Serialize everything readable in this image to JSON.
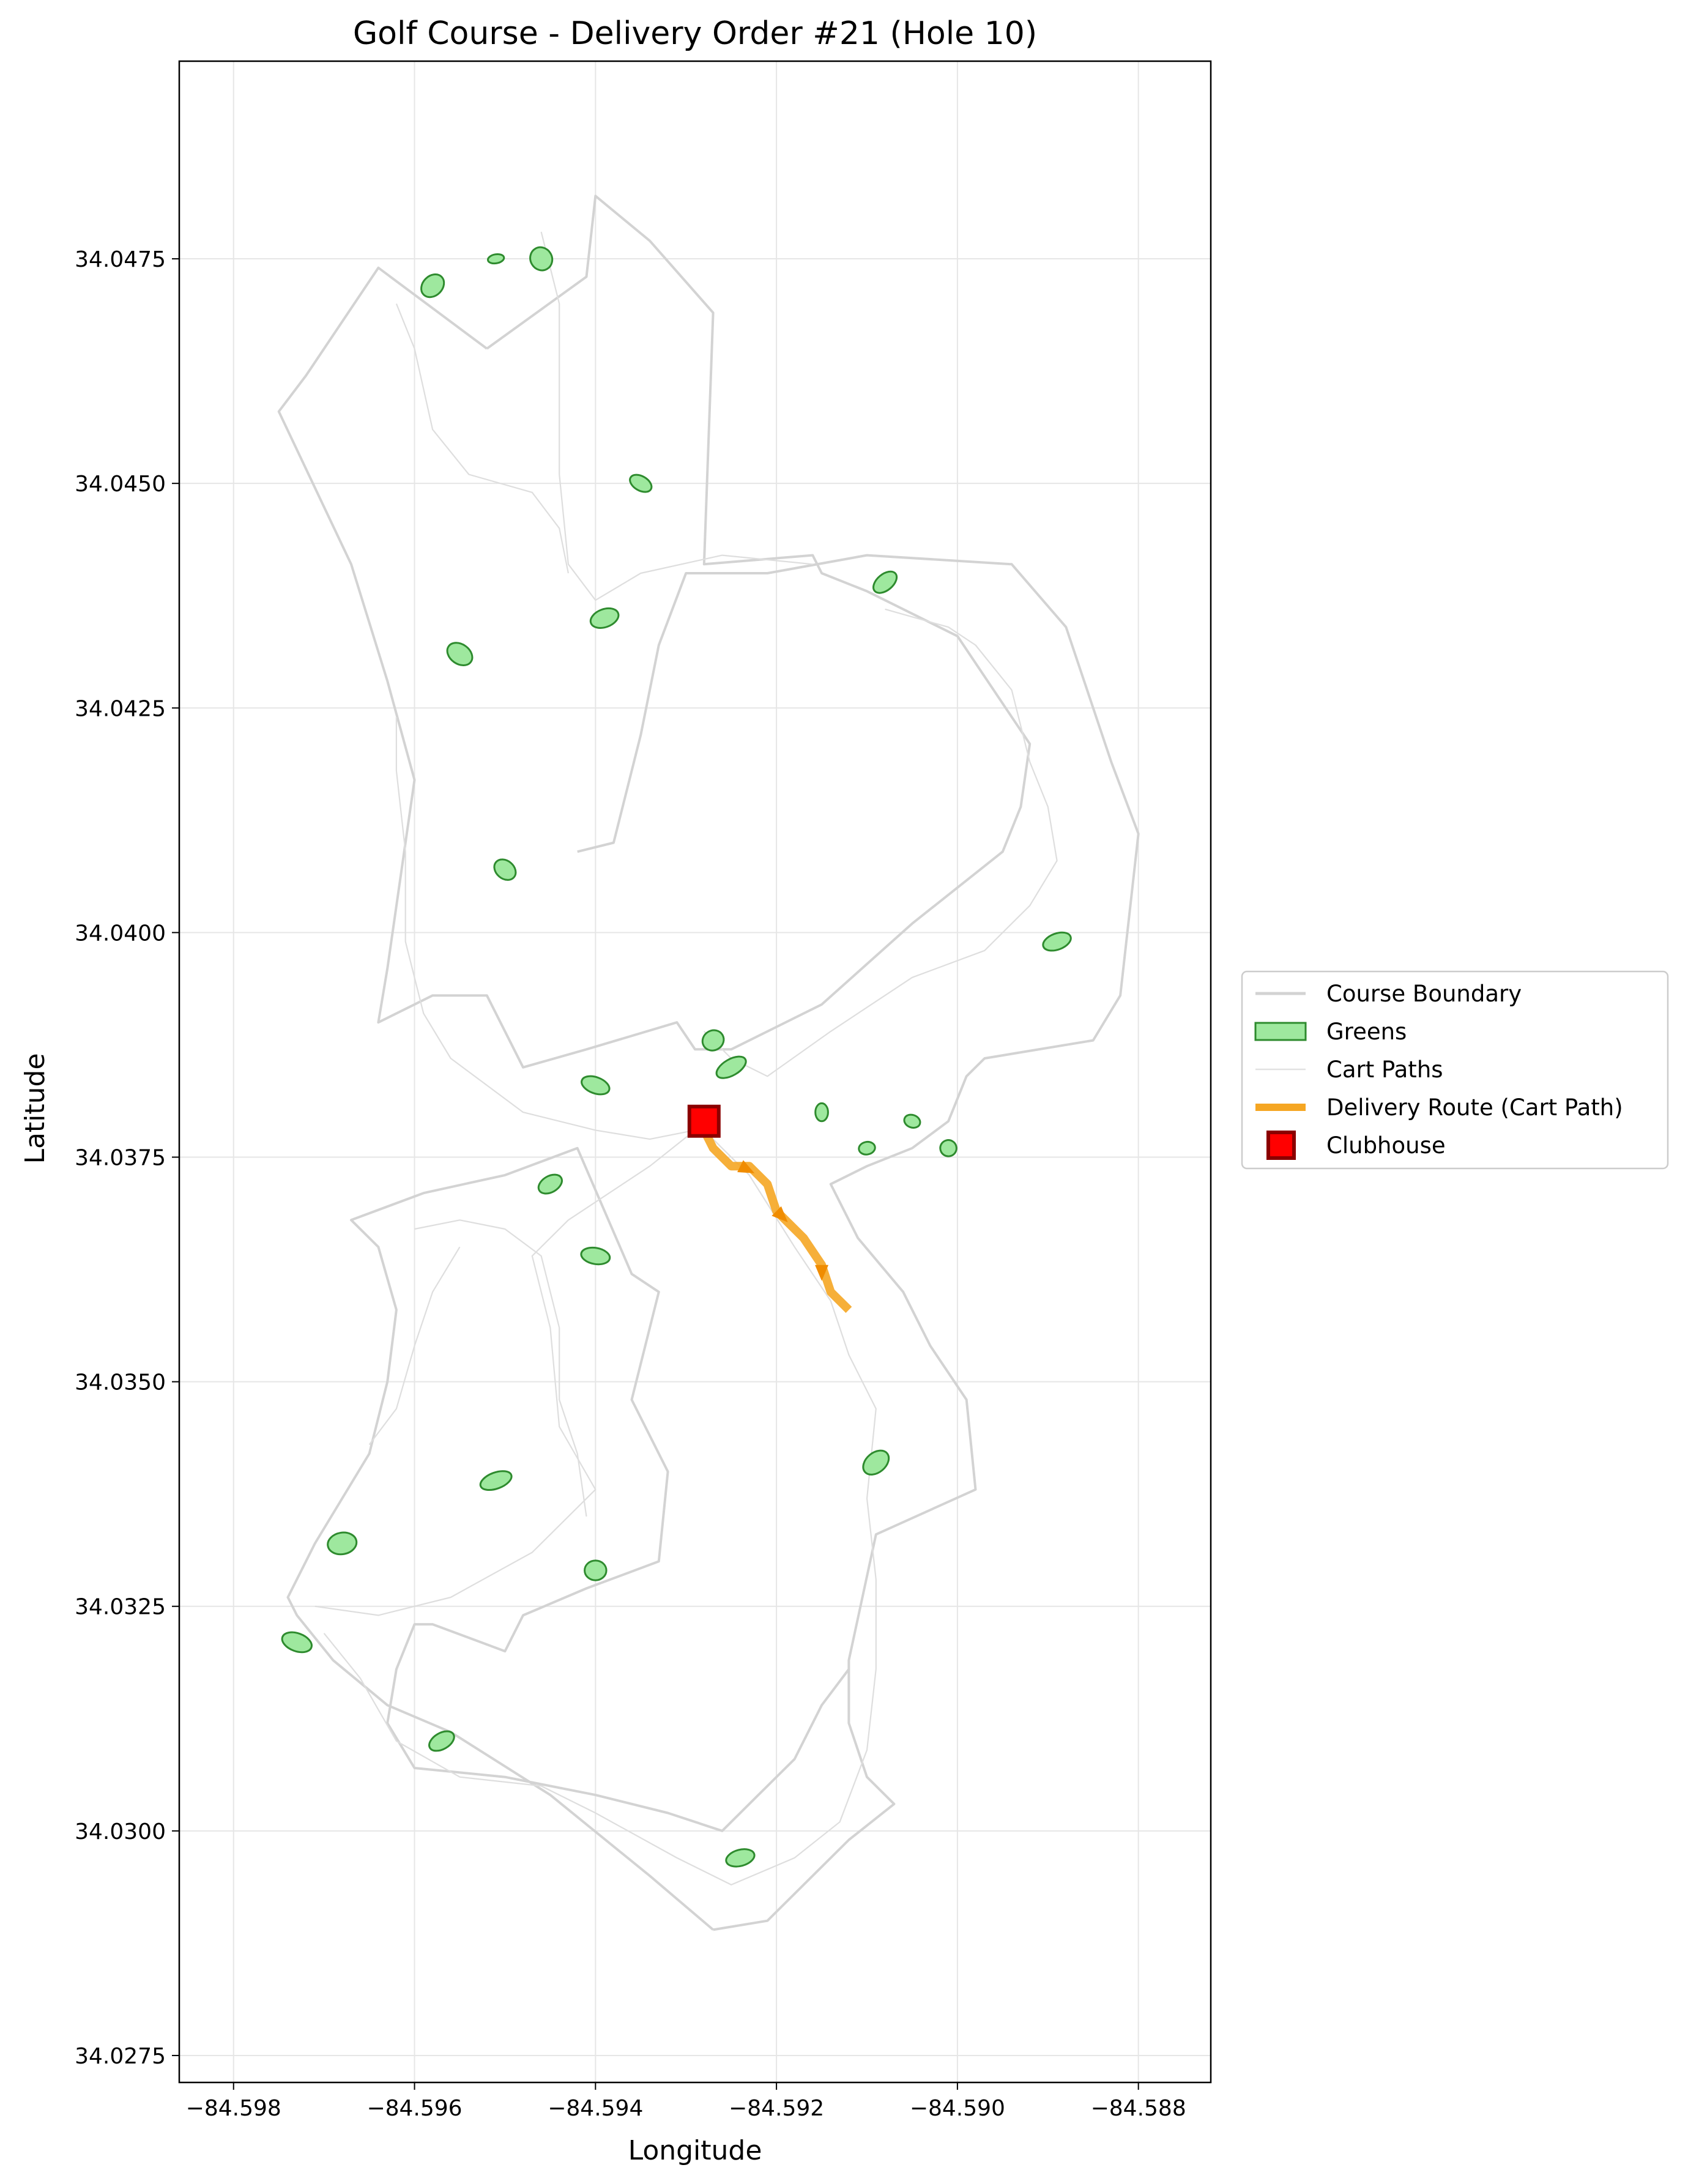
{
  "chart_data": {
    "type": "map",
    "title": "Golf Course - Delivery Order #21 (Hole 10)",
    "xlabel": "Longitude",
    "ylabel": "Latitude",
    "xlim": [
      -84.5986,
      -84.5872
    ],
    "ylim": [
      34.0272,
      34.0497
    ],
    "x_ticks": [
      {
        "value": -84.598,
        "label": "−84.598"
      },
      {
        "value": -84.596,
        "label": "−84.596"
      },
      {
        "value": -84.594,
        "label": "−84.594"
      },
      {
        "value": -84.592,
        "label": "−84.592"
      },
      {
        "value": -84.59,
        "label": "−84.590"
      },
      {
        "value": -84.588,
        "label": "−84.588"
      }
    ],
    "y_ticks": [
      {
        "value": 34.0275,
        "label": "34.0275"
      },
      {
        "value": 34.03,
        "label": "34.0300"
      },
      {
        "value": 34.0325,
        "label": "34.0325"
      },
      {
        "value": 34.035,
        "label": "34.0350"
      },
      {
        "value": 34.0375,
        "label": "34.0375"
      },
      {
        "value": 34.04,
        "label": "34.0400"
      },
      {
        "value": 34.0425,
        "label": "34.0425"
      },
      {
        "value": 34.045,
        "label": "34.0450"
      },
      {
        "value": 34.0475,
        "label": "34.0475"
      }
    ],
    "grid": true,
    "legend_placement": "right",
    "legend": [
      {
        "label": "Course Boundary",
        "kind": "line",
        "color": "#d3d3d3"
      },
      {
        "label": "Greens",
        "kind": "patch",
        "color": "#9ee89e",
        "edge": "#2e8b2e"
      },
      {
        "label": "Cart Paths",
        "kind": "thin-line",
        "color": "#e2e2e2"
      },
      {
        "label": "Delivery Route (Cart Path)",
        "kind": "line",
        "color": "#f5a623"
      },
      {
        "label": "Clubhouse",
        "kind": "square",
        "color": "#ff0000",
        "edge": "#8b0000"
      }
    ],
    "clubhouse": {
      "lon": -84.5928,
      "lat": 34.0379
    },
    "delivery_route": [
      [
        -84.5928,
        34.0378
      ],
      [
        -84.5927,
        34.0376
      ],
      [
        -84.5925,
        34.0374
      ],
      [
        -84.5923,
        34.0374
      ],
      [
        -84.5921,
        34.0372
      ],
      [
        -84.592,
        34.0369
      ],
      [
        -84.5917,
        34.0366
      ],
      [
        -84.5915,
        34.0363
      ],
      [
        -84.5914,
        34.036
      ],
      [
        -84.5912,
        34.0358
      ]
    ],
    "route_arrows": [
      [
        -84.5924,
        34.0374,
        -84.5922,
        34.0373
      ],
      [
        -84.592,
        34.0369,
        -84.5919,
        34.0368
      ],
      [
        -84.5915,
        34.0363,
        -84.5915,
        34.0362
      ]
    ],
    "course_boundary": [
      [
        [
          -84.5952,
          34.0465
        ],
        [
          -84.5941,
          34.0473
        ],
        [
          -84.594,
          34.0482
        ],
        [
          -84.5934,
          34.0477
        ],
        [
          -84.5927,
          34.0469
        ],
        [
          -84.5928,
          34.0441
        ],
        [
          -84.5916,
          34.0442
        ],
        [
          -84.5915,
          34.044
        ],
        [
          -84.591,
          34.0438
        ],
        [
          -84.59,
          34.0433
        ],
        [
          -84.5892,
          34.0421
        ],
        [
          -84.5893,
          34.0414
        ],
        [
          -84.5895,
          34.0409
        ],
        [
          -84.5905,
          34.0401
        ],
        [
          -84.5915,
          34.0392
        ],
        [
          -84.5925,
          34.0387
        ],
        [
          -84.5929,
          34.0387
        ],
        [
          -84.5931,
          34.039
        ],
        [
          -84.5941,
          34.0387
        ],
        [
          -84.5948,
          34.0385
        ],
        [
          -84.5952,
          34.0393
        ],
        [
          -84.5958,
          34.0393
        ],
        [
          -84.5962,
          34.0391
        ],
        [
          -84.5964,
          34.039
        ],
        [
          -84.5963,
          34.0396
        ],
        [
          -84.596,
          34.0417
        ],
        [
          -84.5963,
          34.0428
        ],
        [
          -84.5967,
          34.0441
        ],
        [
          -84.5975,
          34.0458
        ],
        [
          -84.5972,
          34.0462
        ],
        [
          -84.5964,
          34.0474
        ],
        [
          -84.5952,
          34.0465
        ]
      ],
      [
        [
          -84.5942,
          34.0409
        ],
        [
          -84.5938,
          34.041
        ],
        [
          -84.5935,
          34.0422
        ],
        [
          -84.5933,
          34.0432
        ],
        [
          -84.593,
          34.044
        ],
        [
          -84.5921,
          34.044
        ],
        [
          -84.591,
          34.0442
        ],
        [
          -84.5894,
          34.0441
        ],
        [
          -84.5888,
          34.0434
        ],
        [
          -84.5883,
          34.0419
        ],
        [
          -84.588,
          34.0411
        ],
        [
          -84.5882,
          34.0393
        ],
        [
          -84.5885,
          34.0388
        ],
        [
          -84.5897,
          34.0386
        ],
        [
          -84.5899,
          34.0384
        ],
        [
          -84.5901,
          34.0379
        ],
        [
          -84.5905,
          34.0376
        ],
        [
          -84.591,
          34.0374
        ],
        [
          -84.5914,
          34.0372
        ],
        [
          -84.5911,
          34.0366
        ],
        [
          -84.5906,
          34.036
        ],
        [
          -84.5903,
          34.0354
        ],
        [
          -84.5899,
          34.0348
        ],
        [
          -84.5898,
          34.0338
        ],
        [
          -84.5909,
          34.0333
        ],
        [
          -84.5912,
          34.0319
        ],
        [
          -84.5912,
          34.0312
        ],
        [
          -84.591,
          34.0306
        ],
        [
          -84.5907,
          34.0303
        ],
        [
          -84.5912,
          34.0299
        ],
        [
          -84.5921,
          34.029
        ],
        [
          -84.5927,
          34.0289
        ]
      ],
      [
        [
          -84.5927,
          34.0289
        ],
        [
          -84.5934,
          34.0295
        ],
        [
          -84.5945,
          34.0304
        ],
        [
          -84.5956,
          34.0311
        ],
        [
          -84.5963,
          34.0314
        ],
        [
          -84.5969,
          34.0319
        ],
        [
          -84.5973,
          34.0324
        ],
        [
          -84.5974,
          34.0326
        ],
        [
          -84.5971,
          34.0332
        ],
        [
          -84.5968,
          34.0337
        ],
        [
          -84.5965,
          34.0342
        ],
        [
          -84.5963,
          34.035
        ],
        [
          -84.5962,
          34.0358
        ],
        [
          -84.5964,
          34.0365
        ],
        [
          -84.5967,
          34.0368
        ],
        [
          -84.5959,
          34.0371
        ],
        [
          -84.595,
          34.0373
        ],
        [
          -84.5942,
          34.0376
        ],
        [
          -84.5936,
          34.0362
        ],
        [
          -84.5933,
          34.036
        ],
        [
          -84.5936,
          34.0348
        ],
        [
          -84.5932,
          34.034
        ],
        [
          -84.5933,
          34.033
        ],
        [
          -84.5941,
          34.0327
        ],
        [
          -84.5948,
          34.0324
        ],
        [
          -84.595,
          34.032
        ],
        [
          -84.5958,
          34.0323
        ],
        [
          -84.596,
          34.0323
        ],
        [
          -84.5962,
          34.0318
        ],
        [
          -84.5963,
          34.0312
        ],
        [
          -84.596,
          34.0307
        ],
        [
          -84.595,
          34.0306
        ],
        [
          -84.594,
          34.0304
        ],
        [
          -84.5932,
          34.0302
        ],
        [
          -84.5926,
          34.03
        ],
        [
          -84.5922,
          34.0304
        ],
        [
          -84.5918,
          34.0308
        ],
        [
          -84.5915,
          34.0314
        ],
        [
          -84.5912,
          34.0318
        ]
      ]
    ],
    "cart_paths": [
      [
        [
          -84.5962,
          34.0424
        ],
        [
          -84.5962,
          34.0418
        ],
        [
          -84.5961,
          34.0409
        ],
        [
          -84.5961,
          34.0399
        ],
        [
          -84.5959,
          34.0391
        ],
        [
          -84.5956,
          34.0386
        ],
        [
          -84.5948,
          34.038
        ],
        [
          -84.594,
          34.0378
        ],
        [
          -84.5934,
          34.0377
        ],
        [
          -84.5929,
          34.0378
        ],
        [
          -84.5934,
          34.0374
        ],
        [
          -84.5943,
          34.0368
        ],
        [
          -84.5947,
          34.0364
        ],
        [
          -84.5945,
          34.0356
        ],
        [
          -84.5944,
          34.0345
        ],
        [
          -84.594,
          34.0338
        ],
        [
          -84.5947,
          34.0331
        ],
        [
          -84.5956,
          34.0326
        ],
        [
          -84.5964,
          34.0324
        ],
        [
          -84.5971,
          34.0325
        ]
      ],
      [
        [
          -84.5946,
          34.0478
        ],
        [
          -84.5944,
          34.047
        ],
        [
          -84.5944,
          34.0461
        ],
        [
          -84.5944,
          34.0451
        ],
        [
          -84.5943,
          34.0441
        ],
        [
          -84.594,
          34.0437
        ],
        [
          -84.5935,
          34.044
        ],
        [
          -84.5926,
          34.0442
        ],
        [
          -84.5916,
          34.0441
        ]
      ],
      [
        [
          -84.5962,
          34.047
        ],
        [
          -84.596,
          34.0465
        ],
        [
          -84.5958,
          34.0456
        ],
        [
          -84.5954,
          34.0451
        ],
        [
          -84.5947,
          34.0449
        ],
        [
          -84.5944,
          34.0445
        ],
        [
          -84.5943,
          34.044
        ]
      ],
      [
        [
          -84.5928,
          34.0389
        ],
        [
          -84.5925,
          34.0386
        ],
        [
          -84.5921,
          34.0384
        ],
        [
          -84.5914,
          34.0389
        ],
        [
          -84.5905,
          34.0395
        ],
        [
          -84.5897,
          34.0398
        ],
        [
          -84.5892,
          34.0403
        ],
        [
          -84.5889,
          34.0408
        ],
        [
          -84.589,
          34.0414
        ],
        [
          -84.5892,
          34.0419
        ],
        [
          -84.5894,
          34.0427
        ],
        [
          -84.5898,
          34.0432
        ],
        [
          -84.5901,
          34.0434
        ],
        [
          -84.5908,
          34.0436
        ]
      ],
      [
        [
          -84.5928,
          34.0378
        ],
        [
          -84.5923,
          34.0373
        ],
        [
          -84.5918,
          34.0365
        ],
        [
          -84.5914,
          34.0359
        ],
        [
          -84.5912,
          34.0353
        ],
        [
          -84.5909,
          34.0347
        ],
        [
          -84.591,
          34.0337
        ],
        [
          -84.5909,
          34.0328
        ],
        [
          -84.5909,
          34.0318
        ],
        [
          -84.591,
          34.0309
        ],
        [
          -84.5913,
          34.0301
        ],
        [
          -84.5918,
          34.0297
        ],
        [
          -84.5925,
          34.0294
        ],
        [
          -84.5931,
          34.0297
        ],
        [
          -84.594,
          34.0302
        ],
        [
          -84.5946,
          34.0305
        ],
        [
          -84.5955,
          34.0306
        ],
        [
          -84.5962,
          34.031
        ],
        [
          -84.5966,
          34.0317
        ],
        [
          -84.597,
          34.0322
        ]
      ],
      [
        [
          -84.596,
          34.0367
        ],
        [
          -84.5955,
          34.0368
        ],
        [
          -84.595,
          34.0367
        ],
        [
          -84.5946,
          34.0364
        ],
        [
          -84.5944,
          34.0356
        ],
        [
          -84.5944,
          34.0348
        ],
        [
          -84.5942,
          34.0342
        ],
        [
          -84.5941,
          34.0335
        ]
      ],
      [
        [
          -84.5965,
          34.0343
        ],
        [
          -84.5962,
          34.0347
        ],
        [
          -84.596,
          34.0354
        ],
        [
          -84.5958,
          34.036
        ],
        [
          -84.5955,
          34.0365
        ]
      ]
    ],
    "greens": [
      {
        "lon": -84.5958,
        "lat": 34.0472,
        "rx": 0.00014,
        "ry": 0.00011,
        "rot": -45
      },
      {
        "lon": -84.5951,
        "lat": 34.0475,
        "rx": 9e-05,
        "ry": 5e-05,
        "rot": -10
      },
      {
        "lon": -84.5946,
        "lat": 34.0475,
        "rx": 0.00013,
        "ry": 0.00012,
        "rot": 60
      },
      {
        "lon": -84.5935,
        "lat": 34.045,
        "rx": 0.00013,
        "ry": 8e-05,
        "rot": 30
      },
      {
        "lon": -84.5939,
        "lat": 34.0435,
        "rx": 0.00016,
        "ry": 0.0001,
        "rot": -20
      },
      {
        "lon": -84.5908,
        "lat": 34.0439,
        "rx": 0.00015,
        "ry": 9e-05,
        "rot": -40
      },
      {
        "lon": -84.5955,
        "lat": 34.0431,
        "rx": 0.00015,
        "ry": 0.00011,
        "rot": 35
      },
      {
        "lon": -84.595,
        "lat": 34.0407,
        "rx": 0.00013,
        "ry": 0.0001,
        "rot": 40
      },
      {
        "lon": -84.5889,
        "lat": 34.0399,
        "rx": 0.00016,
        "ry": 9e-05,
        "rot": -20
      },
      {
        "lon": -84.5927,
        "lat": 34.0388,
        "rx": 0.00012,
        "ry": 0.00011,
        "rot": -30
      },
      {
        "lon": -84.5925,
        "lat": 34.0385,
        "rx": 0.00018,
        "ry": 9e-05,
        "rot": -30
      },
      {
        "lon": -84.594,
        "lat": 34.0383,
        "rx": 0.00016,
        "ry": 9e-05,
        "rot": 20
      },
      {
        "lon": -84.5915,
        "lat": 34.038,
        "rx": 7e-05,
        "ry": 0.0001,
        "rot": 0
      },
      {
        "lon": -84.5905,
        "lat": 34.0379,
        "rx": 9e-05,
        "ry": 7e-05,
        "rot": 20
      },
      {
        "lon": -84.591,
        "lat": 34.0376,
        "rx": 9e-05,
        "ry": 7e-05,
        "rot": -10
      },
      {
        "lon": -84.5901,
        "lat": 34.0376,
        "rx": 9e-05,
        "ry": 9e-05,
        "rot": 30
      },
      {
        "lon": -84.5945,
        "lat": 34.0372,
        "rx": 0.00014,
        "ry": 9e-05,
        "rot": -30
      },
      {
        "lon": -84.594,
        "lat": 34.0364,
        "rx": 0.00016,
        "ry": 9e-05,
        "rot": 10
      },
      {
        "lon": -84.5909,
        "lat": 34.0341,
        "rx": 0.00016,
        "ry": 0.00011,
        "rot": -40
      },
      {
        "lon": -84.5951,
        "lat": 34.0339,
        "rx": 0.00018,
        "ry": 9e-05,
        "rot": -20
      },
      {
        "lon": -84.5968,
        "lat": 34.0332,
        "rx": 0.00016,
        "ry": 0.00012,
        "rot": -10
      },
      {
        "lon": -84.594,
        "lat": 34.0329,
        "rx": 0.00012,
        "ry": 0.00011,
        "rot": 0
      },
      {
        "lon": -84.5973,
        "lat": 34.0321,
        "rx": 0.00017,
        "ry": 0.0001,
        "rot": 20
      },
      {
        "lon": -84.5957,
        "lat": 34.031,
        "rx": 0.00015,
        "ry": 9e-05,
        "rot": -30
      },
      {
        "lon": -84.5924,
        "lat": 34.0297,
        "rx": 0.00016,
        "ry": 9e-05,
        "rot": -15
      }
    ]
  }
}
